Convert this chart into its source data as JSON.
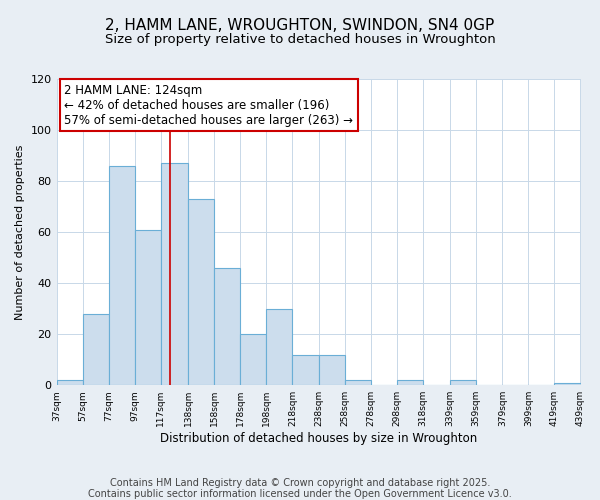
{
  "title": "2, HAMM LANE, WROUGHTON, SWINDON, SN4 0GP",
  "subtitle": "Size of property relative to detached houses in Wroughton",
  "xlabel": "Distribution of detached houses by size in Wroughton",
  "ylabel": "Number of detached properties",
  "bar_edges": [
    37,
    57,
    77,
    97,
    117,
    138,
    158,
    178,
    198,
    218,
    238,
    258,
    278,
    298,
    318,
    339,
    359,
    379,
    399,
    419,
    439
  ],
  "bar_heights": [
    2,
    28,
    86,
    61,
    87,
    73,
    46,
    20,
    30,
    12,
    12,
    2,
    0,
    2,
    0,
    2,
    0,
    0,
    0,
    1
  ],
  "bar_color": "#ccdded",
  "bar_edge_color": "#6aaed6",
  "bar_linewidth": 0.8,
  "vline_x": 124,
  "vline_color": "#cc0000",
  "vline_linewidth": 1.2,
  "annotation_text": "2 HAMM LANE: 124sqm\n← 42% of detached houses are smaller (196)\n57% of semi-detached houses are larger (263) →",
  "annotation_box_color": "#ffffff",
  "annotation_box_edge_color": "#cc0000",
  "ylim": [
    0,
    120
  ],
  "yticks": [
    0,
    20,
    40,
    60,
    80,
    100,
    120
  ],
  "xlim": [
    37,
    439
  ],
  "tick_labels": [
    "37sqm",
    "57sqm",
    "77sqm",
    "97sqm",
    "117sqm",
    "138sqm",
    "158sqm",
    "178sqm",
    "198sqm",
    "218sqm",
    "238sqm",
    "258sqm",
    "278sqm",
    "298sqm",
    "318sqm",
    "339sqm",
    "359sqm",
    "379sqm",
    "399sqm",
    "419sqm",
    "439sqm"
  ],
  "footer_line1": "Contains HM Land Registry data © Crown copyright and database right 2025.",
  "footer_line2": "Contains public sector information licensed under the Open Government Licence v3.0.",
  "background_color": "#e8eef4",
  "plot_background": "#ffffff",
  "grid_color": "#c8d8e8",
  "title_fontsize": 11,
  "subtitle_fontsize": 9.5,
  "annotation_fontsize": 8.5,
  "footer_fontsize": 7,
  "ylabel_fontsize": 8,
  "xlabel_fontsize": 8.5,
  "ytick_fontsize": 8,
  "xtick_fontsize": 6.5
}
